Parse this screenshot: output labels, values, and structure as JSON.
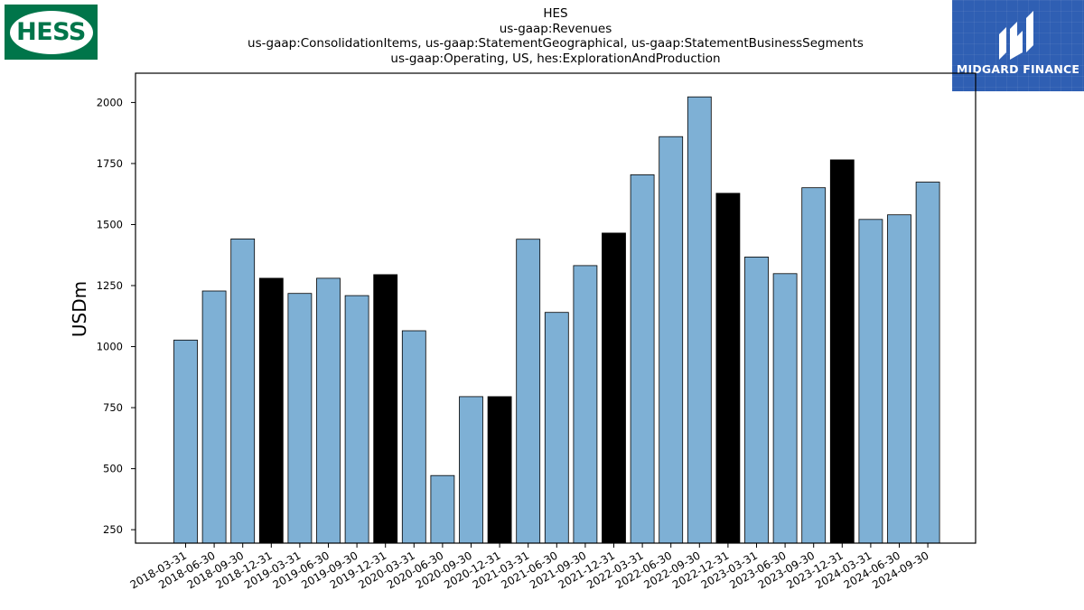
{
  "logos": {
    "left_text": "HESS",
    "right_text": "MIDGARD FINANCE"
  },
  "colors": {
    "bar": "#7eb0d5",
    "bar_highlight": "#000000",
    "hess_green": "#00754a",
    "midgard_blue": "#2f5fb3"
  },
  "chart_data": {
    "type": "bar",
    "title_lines": [
      "HES",
      "us-gaap:Revenues",
      "us-gaap:ConsolidationItems, us-gaap:StatementGeographical, us-gaap:StatementBusinessSegments",
      "us-gaap:Operating, US, hes:ExplorationAndProduction"
    ],
    "ylabel": "USDm",
    "xlabel": "",
    "ylim": [
      195,
      2120
    ],
    "yticks": [
      250,
      500,
      750,
      1000,
      1250,
      1500,
      1750,
      2000
    ],
    "categories": [
      "2018-03-31",
      "2018-06-30",
      "2018-09-30",
      "2018-12-31",
      "2019-03-31",
      "2019-06-30",
      "2019-09-30",
      "2019-12-31",
      "2020-03-31",
      "2020-06-30",
      "2020-09-30",
      "2020-12-31",
      "2021-03-31",
      "2021-06-30",
      "2021-09-30",
      "2021-12-31",
      "2022-03-31",
      "2022-06-30",
      "2022-09-30",
      "2022-12-31",
      "2023-03-31",
      "2023-06-30",
      "2023-09-30",
      "2023-12-31",
      "2024-03-31",
      "2024-06-30",
      "2024-09-30"
    ],
    "values": [
      1027,
      1228,
      1441,
      1280,
      1218,
      1280,
      1209,
      1295,
      1065,
      472,
      795,
      795,
      1440,
      1140,
      1332,
      1465,
      1704,
      1860,
      2023,
      1628,
      1367,
      1299,
      1651,
      1765,
      1521,
      1540,
      1674
    ],
    "highlight_year_end": true,
    "grid": false,
    "legend": "none"
  }
}
